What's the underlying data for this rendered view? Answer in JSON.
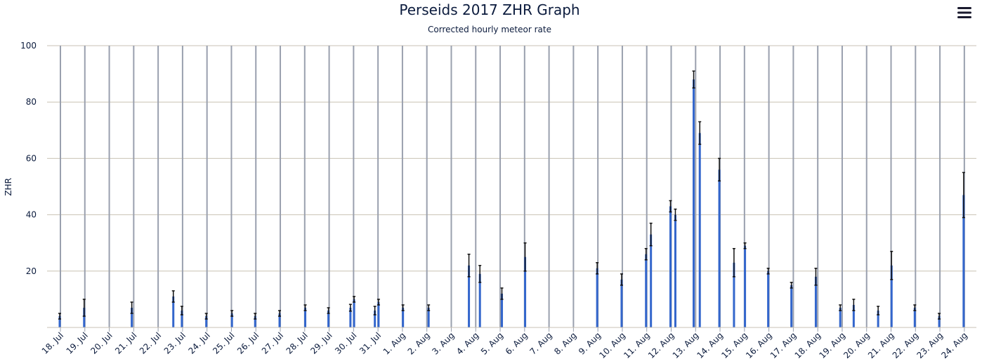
{
  "chart_data": {
    "type": "bar",
    "title": "Perseids 2017 ZHR Graph",
    "subtitle": "Corrected hourly meteor rate",
    "ylabel": "ZHR",
    "xlabel": "",
    "ylim": [
      0,
      100
    ],
    "yticks": [
      "100",
      "80",
      "60",
      "40",
      "20"
    ],
    "xlim": [
      0,
      37
    ],
    "xtick_labels": [
      "18. Jul",
      "19. Jul",
      "20. Jul",
      "21. Jul",
      "22. Jul",
      "23. Jul",
      "24. Jul",
      "25. Jul",
      "26. Jul",
      "27. Jul",
      "28. Jul",
      "29. Jul",
      "30. Jul",
      "31. Jul",
      "1. Aug",
      "2. Aug",
      "3. Aug",
      "4. Aug",
      "5. Aug",
      "6. Aug",
      "7. Aug",
      "8. Aug",
      "9. Aug",
      "10. Aug",
      "11. Aug",
      "12. Aug",
      "13. Aug",
      "14. Aug",
      "15. Aug",
      "16. Aug",
      "17. Aug",
      "18. Aug",
      "19. Aug",
      "20. Aug",
      "21. Aug",
      "22. Aug",
      "23. Aug",
      "24. Aug"
    ],
    "bar_color": "#3366cc",
    "error_color": "#111111",
    "grid_color": "#c9c2b4",
    "day_line_color": "#9aa0ae",
    "x": [
      0.0,
      1.0,
      2.95,
      4.65,
      5.0,
      6.0,
      7.05,
      8.0,
      9.0,
      10.05,
      11.0,
      11.9,
      12.05,
      12.9,
      13.05,
      14.05,
      15.1,
      16.75,
      17.2,
      18.1,
      19.05,
      22.0,
      23.0,
      24.0,
      24.2,
      25.0,
      25.2,
      25.95,
      26.2,
      27.0,
      27.6,
      28.05,
      29.0,
      29.95,
      30.95,
      31.95,
      32.5,
      33.5,
      34.05,
      35.0,
      36.0,
      37.0
    ],
    "values": [
      4,
      7,
      7,
      11,
      6,
      4,
      5,
      4,
      5,
      7,
      6,
      7,
      10,
      6,
      9,
      7,
      7,
      22,
      19,
      12,
      25,
      21,
      17,
      26,
      33,
      43,
      40,
      88,
      69,
      56,
      23,
      29,
      20,
      15,
      18,
      7,
      8,
      6,
      22,
      7,
      4,
      47
    ],
    "errors": [
      1,
      3,
      2,
      2,
      1.5,
      1,
      1,
      1,
      1,
      1,
      1,
      1.2,
      1,
      1.5,
      1,
      1,
      1,
      4,
      3,
      2,
      5,
      2,
      2,
      2,
      4,
      2,
      2,
      3,
      4,
      4,
      5,
      1,
      1,
      1,
      3,
      1,
      2,
      1.5,
      5,
      1,
      1,
      8
    ]
  },
  "icons": {
    "menu": "menu-hamburger-icon"
  }
}
